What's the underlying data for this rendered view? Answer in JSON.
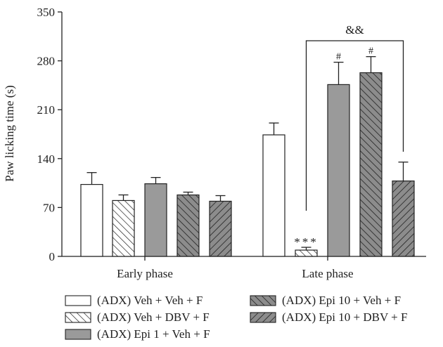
{
  "chart_data": {
    "type": "bar",
    "ylabel": "Paw licking time (s)",
    "xlabel": "",
    "ylim": [
      0,
      350
    ],
    "yticks": [
      0,
      70,
      140,
      210,
      280,
      350
    ],
    "grid": false,
    "legend_position": "bottom",
    "categories": [
      "Early phase",
      "Late phase"
    ],
    "series": [
      {
        "name": "(ADX) Veh + Veh + F",
        "fill": "#ffffff",
        "pattern": "none",
        "values": [
          103,
          174
        ],
        "errors": [
          17,
          17
        ],
        "marks": [
          "",
          ""
        ]
      },
      {
        "name": "(ADX) Veh + DBV + F",
        "fill": "#ffffff",
        "pattern": "hatch-back",
        "values": [
          80,
          9
        ],
        "errors": [
          8,
          4
        ],
        "marks": [
          "",
          "***"
        ]
      },
      {
        "name": "(ADX) Epi 1 + Veh + F",
        "fill": "#9a9a9a",
        "pattern": "none",
        "values": [
          104,
          246
        ],
        "errors": [
          9,
          32
        ],
        "marks": [
          "",
          "#"
        ]
      },
      {
        "name": "(ADX) Epi 10 + Veh + F",
        "fill": "#8c8c8c",
        "pattern": "hatch-back",
        "values": [
          88,
          263
        ],
        "errors": [
          4,
          23
        ],
        "marks": [
          "",
          "#"
        ]
      },
      {
        "name": "(ADX) Epi 10 + DBV + F",
        "fill": "#8c8c8c",
        "pattern": "hatch-forward",
        "values": [
          79,
          108
        ],
        "errors": [
          8,
          27
        ],
        "marks": [
          "",
          ""
        ]
      }
    ],
    "annotations": [
      {
        "label": "&&",
        "from_series": 1,
        "to_series": 4,
        "category": 1
      }
    ]
  }
}
